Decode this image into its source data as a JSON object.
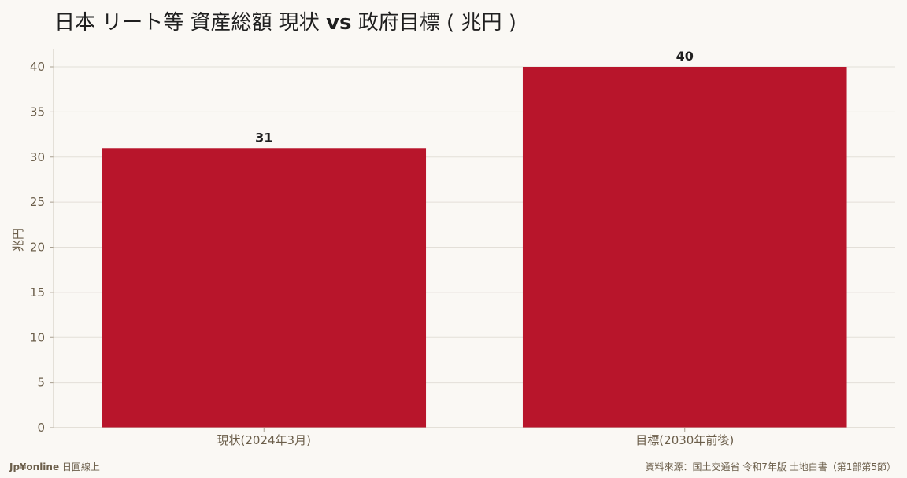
{
  "title_parts": {
    "before": "日本 リート等 資産総額 現状 ",
    "bold": "vs",
    "after": " 政府目標 ( 兆円 )"
  },
  "footer": {
    "brand": "Jp¥online",
    "brand_suffix": " 日圓線上",
    "source": "資料來源：国土交通省 令和7年版 土地白書（第1部第5節）"
  },
  "colors": {
    "bar": "#b8152b",
    "grid": "#e3dfd8",
    "axis_text": "#6b5e4a",
    "value_label": "#1f1f1f"
  },
  "chart_data": {
    "type": "bar",
    "title": "日本 リート等 資産総額 現状 vs 政府目標 ( 兆円 )",
    "xlabel": "",
    "ylabel": "兆円",
    "categories": [
      "現状(2024年3月)",
      "目標(2030年前後)"
    ],
    "values": [
      31,
      40
    ],
    "ylim": [
      0,
      42
    ],
    "yticks": [
      0,
      5,
      10,
      15,
      20,
      25,
      30,
      35,
      40
    ],
    "grid": true,
    "legend": "none"
  }
}
